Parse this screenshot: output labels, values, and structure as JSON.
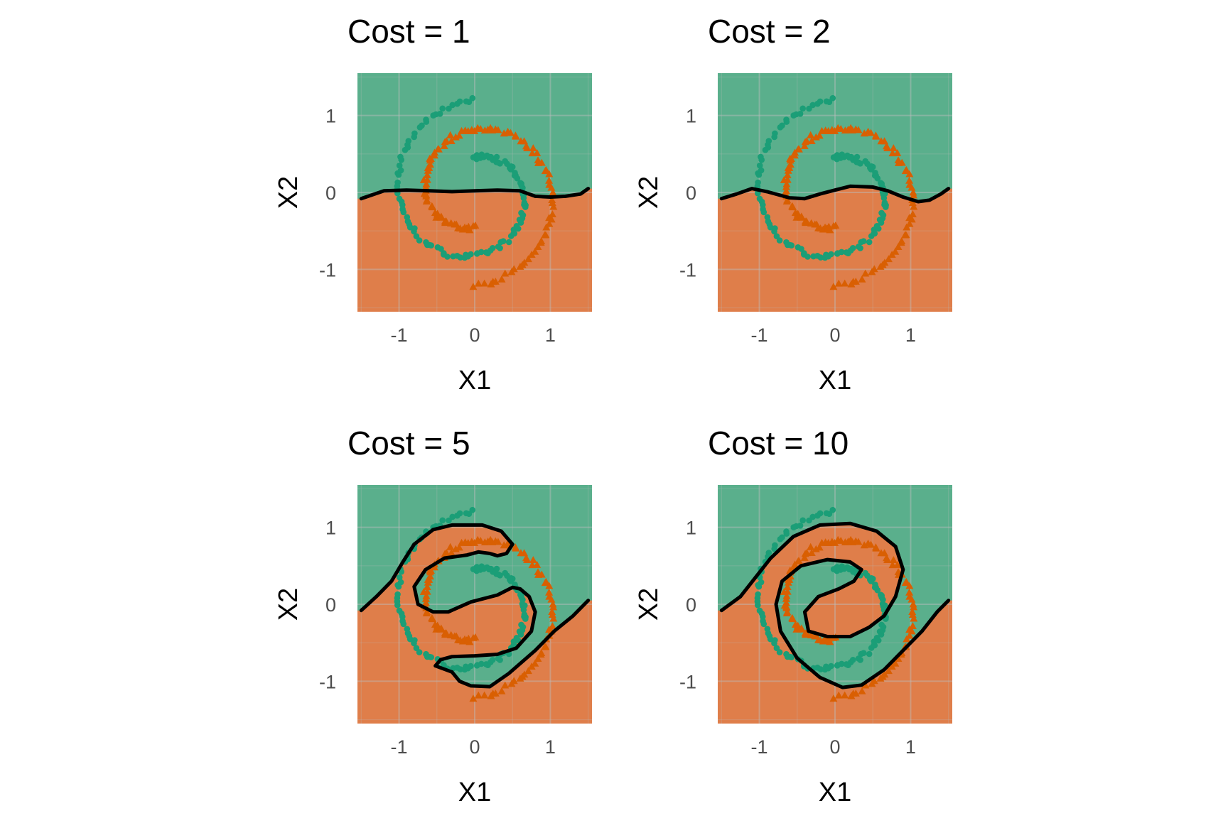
{
  "chart_data": [
    {
      "type": "scatter",
      "title": "Cost = 1",
      "xlabel": "X1",
      "ylabel": "X2",
      "xlim": [
        -1.55,
        1.55
      ],
      "ylim": [
        -1.55,
        1.55
      ],
      "x_ticks": [
        -1,
        0,
        1
      ],
      "y_ticks": [
        -1,
        0,
        1
      ],
      "boundary": [
        [
          -1.5,
          -0.08
        ],
        [
          -1.35,
          -0.03
        ],
        [
          -1.2,
          0.02
        ],
        [
          -0.9,
          0.03
        ],
        [
          -0.6,
          0.02
        ],
        [
          -0.3,
          0.01
        ],
        [
          0,
          0.02
        ],
        [
          0.3,
          0.03
        ],
        [
          0.6,
          0.02
        ],
        [
          0.8,
          -0.05
        ],
        [
          1.0,
          -0.06
        ],
        [
          1.2,
          -0.05
        ],
        [
          1.4,
          -0.02
        ],
        [
          1.5,
          0.05
        ]
      ],
      "boundary_closed": false,
      "region_a_side": "above"
    },
    {
      "type": "scatter",
      "title": "Cost = 2",
      "xlabel": "X1",
      "ylabel": "X2",
      "xlim": [
        -1.55,
        1.55
      ],
      "ylim": [
        -1.55,
        1.55
      ],
      "x_ticks": [
        -1,
        0,
        1
      ],
      "y_ticks": [
        -1,
        0,
        1
      ],
      "boundary": [
        [
          -1.5,
          -0.08
        ],
        [
          -1.3,
          -0.02
        ],
        [
          -1.1,
          0.05
        ],
        [
          -0.9,
          0.01
        ],
        [
          -0.6,
          -0.07
        ],
        [
          -0.4,
          -0.08
        ],
        [
          -0.2,
          -0.02
        ],
        [
          0,
          0.03
        ],
        [
          0.2,
          0.08
        ],
        [
          0.5,
          0.07
        ],
        [
          0.7,
          0.02
        ],
        [
          0.9,
          -0.06
        ],
        [
          1.1,
          -0.12
        ],
        [
          1.25,
          -0.1
        ],
        [
          1.4,
          -0.02
        ],
        [
          1.5,
          0.05
        ]
      ],
      "boundary_closed": false,
      "region_a_side": "above"
    },
    {
      "type": "scatter",
      "title": "Cost = 5",
      "xlabel": "X1",
      "ylabel": "X2",
      "xlim": [
        -1.55,
        1.55
      ],
      "ylim": [
        -1.55,
        1.55
      ],
      "x_ticks": [
        -1,
        0,
        1
      ],
      "y_ticks": [
        -1,
        0,
        1
      ],
      "boundary": [
        [
          -1.5,
          -0.08
        ],
        [
          -1.3,
          0.1
        ],
        [
          -1.1,
          0.3
        ],
        [
          -0.95,
          0.55
        ],
        [
          -0.8,
          0.78
        ],
        [
          -0.55,
          0.97
        ],
        [
          -0.3,
          1.03
        ],
        [
          0.1,
          1.03
        ],
        [
          0.35,
          0.95
        ],
        [
          0.5,
          0.78
        ],
        [
          0.42,
          0.66
        ],
        [
          0.3,
          0.63
        ],
        [
          0.2,
          0.66
        ],
        [
          0.05,
          0.68
        ],
        [
          -0.1,
          0.64
        ],
        [
          -0.4,
          0.6
        ],
        [
          -0.65,
          0.45
        ],
        [
          -0.8,
          0.23
        ],
        [
          -0.75,
          0.0
        ],
        [
          -0.55,
          -0.1
        ],
        [
          -0.35,
          -0.1
        ],
        [
          -0.05,
          0.03
        ],
        [
          0.3,
          0.12
        ],
        [
          0.5,
          0.22
        ],
        [
          0.6,
          0.2
        ],
        [
          0.72,
          0.1
        ],
        [
          0.8,
          -0.1
        ],
        [
          0.75,
          -0.35
        ],
        [
          0.55,
          -0.57
        ],
        [
          0.3,
          -0.65
        ],
        [
          0,
          -0.67
        ],
        [
          -0.3,
          -0.68
        ],
        [
          -0.45,
          -0.72
        ],
        [
          -0.52,
          -0.8
        ],
        [
          -0.3,
          -0.88
        ],
        [
          -0.2,
          -1.0
        ],
        [
          -0.05,
          -1.06
        ],
        [
          0.2,
          -1.07
        ],
        [
          0.45,
          -0.9
        ],
        [
          0.8,
          -0.6
        ],
        [
          1.05,
          -0.35
        ],
        [
          1.3,
          -0.15
        ],
        [
          1.5,
          0.05
        ]
      ],
      "boundary_closed": false,
      "region_a_side": "above"
    },
    {
      "type": "scatter",
      "title": "Cost = 10",
      "xlabel": "X1",
      "ylabel": "X2",
      "xlim": [
        -1.55,
        1.55
      ],
      "ylim": [
        -1.55,
        1.55
      ],
      "x_ticks": [
        -1,
        0,
        1
      ],
      "y_ticks": [
        -1,
        0,
        1
      ],
      "boundary": [
        [
          -1.5,
          -0.08
        ],
        [
          -1.25,
          0.1
        ],
        [
          -1.05,
          0.35
        ],
        [
          -0.85,
          0.6
        ],
        [
          -0.55,
          0.88
        ],
        [
          -0.2,
          1.03
        ],
        [
          0.2,
          1.05
        ],
        [
          0.55,
          0.95
        ],
        [
          0.8,
          0.75
        ],
        [
          0.9,
          0.45
        ],
        [
          0.8,
          0.1
        ],
        [
          0.65,
          -0.15
        ],
        [
          0.45,
          -0.3
        ],
        [
          0.2,
          -0.42
        ],
        [
          -0.1,
          -0.42
        ],
        [
          -0.35,
          -0.35
        ],
        [
          -0.4,
          -0.1
        ],
        [
          -0.22,
          0.1
        ],
        [
          0.05,
          0.2
        ],
        [
          0.25,
          0.3
        ],
        [
          0.35,
          0.45
        ],
        [
          0.2,
          0.55
        ],
        [
          -0.1,
          0.58
        ],
        [
          -0.45,
          0.5
        ],
        [
          -0.7,
          0.3
        ],
        [
          -0.78,
          0.0
        ],
        [
          -0.72,
          -0.35
        ],
        [
          -0.5,
          -0.7
        ],
        [
          -0.2,
          -0.95
        ],
        [
          0.1,
          -1.08
        ],
        [
          0.35,
          -1.05
        ],
        [
          0.65,
          -0.85
        ],
        [
          0.9,
          -0.6
        ],
        [
          1.15,
          -0.35
        ],
        [
          1.35,
          -0.1
        ],
        [
          1.5,
          0.05
        ]
      ],
      "boundary_closed": false,
      "region_a_side": "above"
    }
  ],
  "colors": {
    "class_a": "#1b9e77",
    "class_b": "#d95f02",
    "region_a": "#5aaf8c",
    "region_b": "#df7e4a",
    "boundary": "#000000",
    "tick_text": "#4d4d4d"
  },
  "markers": {
    "class_a": "circle",
    "class_b": "triangle"
  },
  "spirals": {
    "arm_theta_range": [
      0,
      6.2832
    ],
    "outer_radius": 1.2,
    "inner_radius": 0.45,
    "class_a_rotation": 1.5708,
    "class_b_rotation": 4.7124,
    "points_per_class": 120
  }
}
